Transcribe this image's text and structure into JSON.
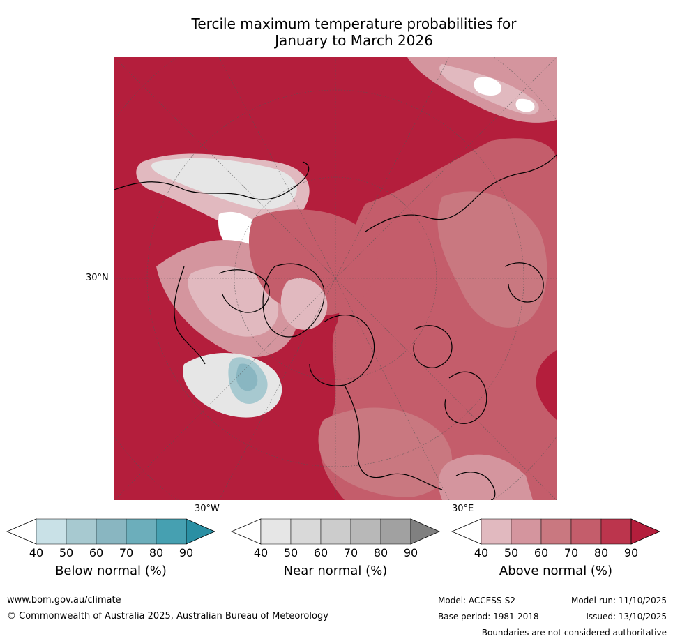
{
  "title": {
    "line1": "Tercile maximum temperature probabilities for",
    "line2": "January to March 2026"
  },
  "map": {
    "projection": "north-polar-stereographic",
    "graticule_labels": {
      "lat": "30°N",
      "lon_west": "30°W",
      "lon_east": "30°E"
    }
  },
  "colorbars": [
    {
      "name": "below-normal",
      "label": "Below normal (%)",
      "ticks": [
        "40",
        "50",
        "60",
        "70",
        "80",
        "90"
      ],
      "colors": [
        "#ffffff",
        "#c9e1e7",
        "#a7c9d0",
        "#89b6c1",
        "#6caebb",
        "#46a0b1",
        "#2a8fa3"
      ]
    },
    {
      "name": "near-normal",
      "label": "Near normal (%)",
      "ticks": [
        "40",
        "50",
        "60",
        "70",
        "80",
        "90"
      ],
      "colors": [
        "#ffffff",
        "#e6e6e6",
        "#d9d9d9",
        "#cccccc",
        "#b8b8b8",
        "#a1a1a1",
        "#808080"
      ]
    },
    {
      "name": "above-normal",
      "label": "Above normal (%)",
      "ticks": [
        "40",
        "50",
        "60",
        "70",
        "80",
        "90"
      ],
      "colors": [
        "#ffffff",
        "#e1b9bf",
        "#d4959e",
        "#c97880",
        "#c45d6b",
        "#bc354d",
        "#b41e3c"
      ]
    }
  ],
  "footer": {
    "website": "www.bom.gov.au/climate",
    "copyright": "© Commonwealth of Australia 2025, Australian Bureau of Meteorology",
    "model": "Model: ACCESS-S2",
    "base_period": "Base period: 1981-2018",
    "model_run": "Model run: 11/10/2025",
    "issued": "Issued: 13/10/2025",
    "disclaimer": "Boundaries are not considered authoritative"
  }
}
